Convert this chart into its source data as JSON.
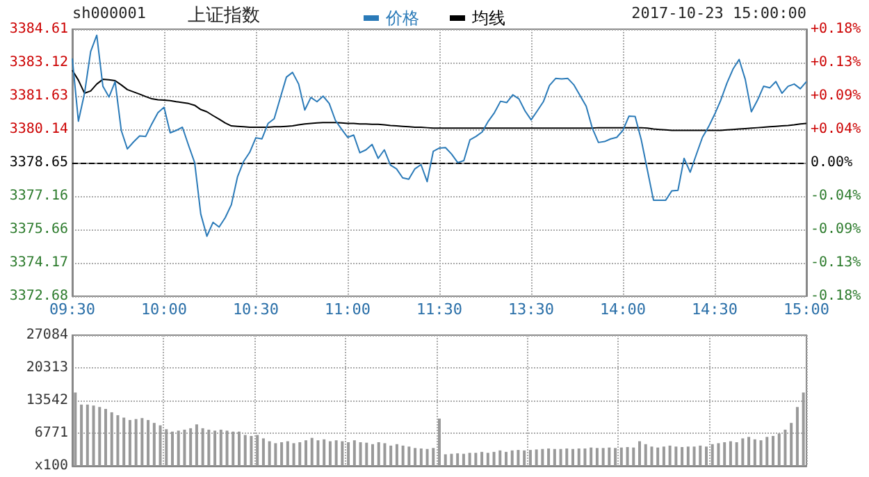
{
  "chart_data": [
    {
      "type": "line",
      "title": "上证指数",
      "annotations": [
        "sh000001",
        "2017-10-23 15:00:00"
      ],
      "categories": [
        "09:30",
        null,
        null,
        null,
        null,
        null,
        null,
        null,
        null,
        null,
        null,
        null,
        null,
        null,
        null,
        "10:00",
        null,
        null,
        null,
        null,
        null,
        null,
        null,
        null,
        null,
        null,
        null,
        null,
        null,
        null,
        "10:30",
        null,
        null,
        null,
        null,
        null,
        null,
        null,
        null,
        null,
        null,
        null,
        null,
        null,
        null,
        "11:00",
        null,
        null,
        null,
        null,
        null,
        null,
        null,
        null,
        null,
        null,
        null,
        null,
        null,
        null,
        "11:30",
        null,
        null,
        null,
        null,
        null,
        null,
        null,
        null,
        null,
        null,
        null,
        null,
        null,
        null,
        "13:30",
        null,
        null,
        null,
        null,
        null,
        null,
        null,
        null,
        null,
        null,
        null,
        null,
        null,
        null,
        "14:00",
        null,
        null,
        null,
        null,
        null,
        null,
        null,
        null,
        null,
        null,
        null,
        null,
        null,
        null,
        "14:30",
        null,
        null,
        null,
        null,
        null,
        null,
        null,
        null,
        null,
        null,
        null,
        null,
        null,
        null,
        "15:00"
      ],
      "series": [
        {
          "name": "价格",
          "color": "#2a7ab8",
          "values": [
            3383.3,
            3380.5,
            3381.75,
            3383.61,
            3384.34,
            3382.06,
            3381.58,
            3382.27,
            3380.09,
            3379.26,
            3379.57,
            3379.84,
            3379.82,
            3380.38,
            3380.88,
            3381.12,
            3379.98,
            3380.09,
            3380.23,
            3379.42,
            3378.65,
            3376.35,
            3375.36,
            3375.98,
            3375.77,
            3376.19,
            3376.77,
            3378.01,
            3378.7,
            3379.11,
            3379.76,
            3379.71,
            3380.4,
            3380.61,
            3381.54,
            3382.47,
            3382.68,
            3382.16,
            3381.0,
            3381.56,
            3381.37,
            3381.62,
            3381.29,
            3380.54,
            3380.15,
            3379.78,
            3379.88,
            3379.09,
            3379.22,
            3379.46,
            3378.84,
            3379.22,
            3378.54,
            3378.37,
            3377.97,
            3377.91,
            3378.37,
            3378.56,
            3377.8,
            3379.15,
            3379.3,
            3379.32,
            3379.03,
            3378.65,
            3378.74,
            3379.67,
            3379.82,
            3380.02,
            3380.5,
            3380.88,
            3381.39,
            3381.33,
            3381.68,
            3381.5,
            3380.96,
            3380.56,
            3380.96,
            3381.37,
            3382.1,
            3382.41,
            3382.39,
            3382.41,
            3382.12,
            3381.64,
            3381.17,
            3380.19,
            3379.55,
            3379.59,
            3379.71,
            3379.78,
            3380.09,
            3380.73,
            3380.71,
            3379.67,
            3378.32,
            3376.97,
            3376.97,
            3376.97,
            3377.39,
            3377.41,
            3378.84,
            3378.22,
            3379.01,
            3379.78,
            3380.25,
            3380.81,
            3381.44,
            3382.2,
            3382.83,
            3383.26,
            3382.37,
            3380.92,
            3381.44,
            3382.06,
            3381.99,
            3382.27,
            3381.75,
            3382.06,
            3382.16,
            3381.95,
            3382.27
          ]
        },
        {
          "name": "均线",
          "color": "#000000",
          "values": [
            3382.78,
            3382.33,
            3381.75,
            3381.85,
            3382.16,
            3382.37,
            3382.35,
            3382.31,
            3382.12,
            3381.91,
            3381.81,
            3381.71,
            3381.6,
            3381.5,
            3381.46,
            3381.44,
            3381.42,
            3381.37,
            3381.33,
            3381.29,
            3381.21,
            3381.02,
            3380.92,
            3380.75,
            3380.59,
            3380.42,
            3380.29,
            3380.27,
            3380.25,
            3380.23,
            3380.23,
            3380.23,
            3380.23,
            3380.25,
            3380.25,
            3380.27,
            3380.29,
            3380.34,
            3380.38,
            3380.4,
            3380.42,
            3380.44,
            3380.44,
            3380.44,
            3380.42,
            3380.4,
            3380.4,
            3380.38,
            3380.38,
            3380.36,
            3380.36,
            3380.34,
            3380.31,
            3380.29,
            3380.27,
            3380.25,
            3380.23,
            3380.23,
            3380.21,
            3380.19,
            3380.19,
            3380.19,
            3380.19,
            3380.19,
            3380.19,
            3380.19,
            3380.19,
            3380.19,
            3380.19,
            3380.19,
            3380.19,
            3380.19,
            3380.19,
            3380.19,
            3380.19,
            3380.19,
            3380.19,
            3380.19,
            3380.19,
            3380.19,
            3380.19,
            3380.19,
            3380.19,
            3380.19,
            3380.19,
            3380.19,
            3380.21,
            3380.21,
            3380.21,
            3380.21,
            3380.21,
            3380.21,
            3380.21,
            3380.21,
            3380.19,
            3380.15,
            3380.13,
            3380.11,
            3380.09,
            3380.09,
            3380.09,
            3380.09,
            3380.09,
            3380.09,
            3380.09,
            3380.09,
            3380.09,
            3380.11,
            3380.13,
            3380.15,
            3380.17,
            3380.19,
            3380.21,
            3380.23,
            3380.25,
            3380.27,
            3380.29,
            3380.31,
            3380.34,
            3380.38,
            3380.4
          ]
        }
      ],
      "ylim": [
        3372.68,
        3384.61
      ],
      "yticks": [
        3372.68,
        3374.17,
        3375.66,
        3377.16,
        3378.65,
        3380.14,
        3381.63,
        3383.12,
        3384.61
      ],
      "y2lim": [
        -0.176,
        0.176
      ],
      "y2ticks": [
        {
          "value": -0.176,
          "label": "-0.18%"
        },
        {
          "value": -0.132,
          "label": "-0.13%"
        },
        {
          "value": -0.088,
          "label": "-0.09%"
        },
        {
          "value": -0.044,
          "label": "-0.04%"
        },
        {
          "value": 0,
          "label": "0.00%"
        },
        {
          "value": 0.044,
          "label": "+0.04%"
        },
        {
          "value": 0.088,
          "label": "+0.09%"
        },
        {
          "value": 0.132,
          "label": "+0.13%"
        },
        {
          "value": 0.176,
          "label": "+0.18%"
        }
      ],
      "ref_lines": [
        {
          "axis": "y",
          "value": 3378.65,
          "color": "#000000",
          "line_style": "dashed"
        }
      ],
      "grid": true,
      "legend": "top",
      "marker": "none"
    },
    {
      "type": "bar",
      "categories": [
        null,
        null,
        null,
        null,
        null,
        null,
        null,
        null,
        null,
        null,
        null,
        null,
        null,
        null,
        null,
        null,
        null,
        null,
        null,
        null,
        null,
        null,
        null,
        null,
        null,
        null,
        null,
        null,
        null,
        null,
        null,
        null,
        null,
        null,
        null,
        null,
        null,
        null,
        null,
        null,
        null,
        null,
        null,
        null,
        null,
        null,
        null,
        null,
        null,
        null,
        null,
        null,
        null,
        null,
        null,
        null,
        null,
        null,
        null,
        null,
        null,
        null,
        null,
        null,
        null,
        null,
        null,
        null,
        null,
        null,
        null,
        null,
        null,
        null,
        null,
        null,
        null,
        null,
        null,
        null,
        null,
        null,
        null,
        null,
        null,
        null,
        null,
        null,
        null,
        null,
        null,
        null,
        null,
        null,
        null,
        null,
        null,
        null,
        null,
        null,
        null,
        null,
        null,
        null,
        null,
        null,
        null,
        null,
        null,
        null,
        null,
        null,
        null,
        null,
        null,
        null,
        null,
        null,
        null,
        null,
        null
      ],
      "values": [
        15200,
        12700,
        12700,
        12500,
        12200,
        11800,
        11100,
        10500,
        10000,
        9500,
        9700,
        9900,
        9500,
        8900,
        8400,
        7600,
        7100,
        7300,
        7500,
        7800,
        8600,
        7800,
        7500,
        7300,
        7500,
        7300,
        7100,
        7100,
        6400,
        6200,
        6400,
        5700,
        5100,
        4700,
        4900,
        5100,
        4700,
        4900,
        5300,
        5800,
        5300,
        5500,
        5100,
        5300,
        5100,
        4900,
        5300,
        4900,
        4800,
        4500,
        4900,
        4700,
        4200,
        4500,
        4200,
        4000,
        3700,
        3600,
        3500,
        3700,
        9800,
        2400,
        2500,
        2600,
        2500,
        2700,
        2700,
        2900,
        2700,
        2900,
        3200,
        2900,
        3200,
        3300,
        3200,
        3300,
        3400,
        3500,
        3600,
        3500,
        3500,
        3600,
        3500,
        3600,
        3600,
        3800,
        3700,
        3700,
        3800,
        3700,
        3800,
        3900,
        3800,
        5100,
        4500,
        4000,
        3800,
        4000,
        4200,
        4000,
        3900,
        4000,
        4000,
        4200,
        4000,
        4500,
        4700,
        4900,
        5100,
        4900,
        5700,
        6000,
        5500,
        5300,
        6000,
        6200,
        6700,
        7500,
        8900,
        12200,
        15200
      ],
      "color": "#999999",
      "ylim": [
        0,
        27084
      ],
      "yticks": [
        {
          "value": 0,
          "label": "x100"
        },
        6771,
        13542,
        20313,
        27084
      ],
      "grid": true
    }
  ]
}
